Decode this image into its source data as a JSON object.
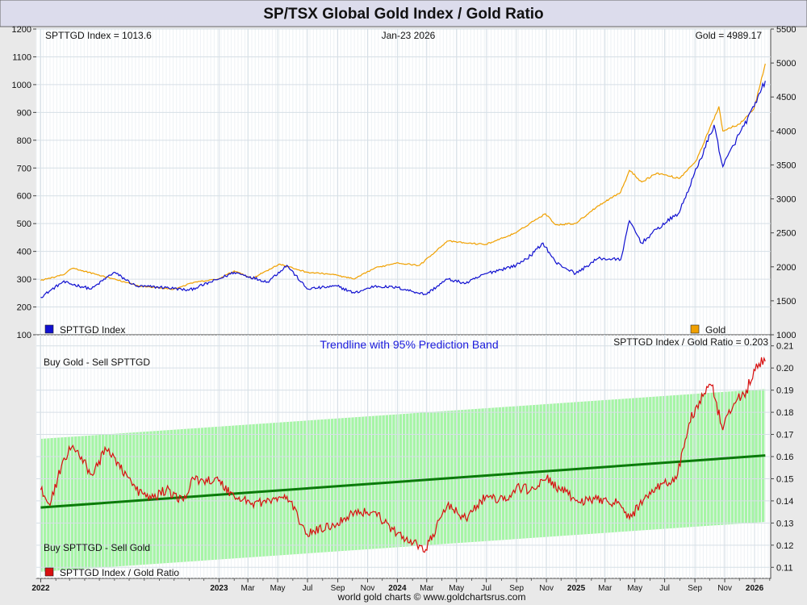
{
  "title": "SP/TSX Global Gold Index / Gold Ratio",
  "footer": "world gold charts © www.goldchartsrus.com",
  "colors": {
    "sptt": "#1010d0",
    "gold": "#f0a000",
    "ratio": "#d81010",
    "trend": "#0a7a0a",
    "band": "#a6f5a6",
    "band_title": "#1a1adc"
  },
  "top_panel": {
    "label_left": "SPTTGD Index = 1013.6",
    "label_center": "Jan-23  2026",
    "label_right": "Gold = 4989.17",
    "legend_left": "SPTTGD Index",
    "legend_right": "Gold"
  },
  "bottom_panel": {
    "band_title": "Trendline with 95% Prediction Band",
    "label_right": "SPTTGD Index / Gold Ratio = 0.203",
    "buy_gold": "Buy Gold - Sell SPTTGD",
    "buy_sptt": "Buy SPTTGD - Sell Gold",
    "legend": "SPTTGD Index / Gold Ratio"
  },
  "chart_data": [
    {
      "type": "line",
      "series": [
        {
          "name": "SPTTGD Index",
          "x": [
            "2022-01-01",
            "2022-02-15",
            "2022-04-15",
            "2022-05-31",
            "2022-07-15",
            "2022-09-15",
            "2022-10-31",
            "2022-12-31",
            "2023-02-01",
            "2023-04-10",
            "2023-05-20",
            "2023-06-30",
            "2023-08-31",
            "2023-10-05",
            "2023-11-15",
            "2023-12-31",
            "2024-02-28",
            "2024-04-12",
            "2024-05-20",
            "2024-06-30",
            "2024-08-31",
            "2024-09-30",
            "2024-10-25",
            "2024-11-20",
            "2024-12-31",
            "2025-02-15",
            "2025-04-02",
            "2025-04-20",
            "2025-05-15",
            "2025-06-15",
            "2025-07-31",
            "2025-09-05",
            "2025-10-10",
            "2025-10-28",
            "2025-11-30",
            "2025-12-31",
            "2026-01-23"
          ],
          "y": [
            235,
            290,
            265,
            325,
            275,
            270,
            260,
            300,
            325,
            290,
            350,
            265,
            275,
            250,
            275,
            270,
            245,
            300,
            285,
            320,
            350,
            385,
            430,
            360,
            320,
            375,
            370,
            510,
            430,
            480,
            540,
            700,
            855,
            705,
            820,
            920,
            1013.6
          ]
        },
        {
          "name": "Gold",
          "x": [
            "2022-01-01",
            "2022-02-15",
            "2022-03-08",
            "2022-05-15",
            "2022-07-20",
            "2022-09-30",
            "2022-11-10",
            "2022-12-31",
            "2023-02-01",
            "2023-03-10",
            "2023-05-04",
            "2023-06-30",
            "2023-08-20",
            "2023-10-05",
            "2023-11-15",
            "2023-12-31",
            "2024-02-15",
            "2024-04-12",
            "2024-05-20",
            "2024-06-30",
            "2024-08-31",
            "2024-09-30",
            "2024-10-30",
            "2024-11-20",
            "2024-12-31",
            "2025-02-15",
            "2025-04-02",
            "2025-04-20",
            "2025-05-15",
            "2025-06-15",
            "2025-07-31",
            "2025-09-05",
            "2025-10-20",
            "2025-10-28",
            "2025-11-30",
            "2025-12-31",
            "2026-01-23"
          ],
          "y": [
            1800,
            1880,
            1980,
            1850,
            1720,
            1670,
            1770,
            1820,
            1940,
            1830,
            2040,
            1920,
            1890,
            1820,
            1980,
            2060,
            2020,
            2380,
            2350,
            2330,
            2500,
            2650,
            2780,
            2620,
            2640,
            2900,
            3100,
            3420,
            3250,
            3380,
            3300,
            3580,
            4360,
            4000,
            4100,
            4330,
            4989.17
          ]
        }
      ],
      "ylim_left": [
        100,
        1200
      ],
      "yticks_left": [
        100,
        200,
        300,
        400,
        500,
        600,
        700,
        800,
        900,
        1000,
        1100,
        1200
      ],
      "ylim_right": [
        1000,
        5500
      ],
      "yticks_right": [
        1000,
        1500,
        2000,
        2500,
        3000,
        3500,
        4000,
        4500,
        5000,
        5500
      ],
      "grid": true
    },
    {
      "type": "line",
      "series": [
        {
          "name": "SPTTGD Index / Gold Ratio",
          "x": [
            "2022-01-01",
            "2022-01-20",
            "2022-02-15",
            "2022-03-08",
            "2022-04-15",
            "2022-05-15",
            "2022-05-31",
            "2022-07-15",
            "2022-08-15",
            "2022-09-15",
            "2022-10-20",
            "2022-11-10",
            "2022-12-31",
            "2023-02-01",
            "2023-03-10",
            "2023-04-15",
            "2023-05-20",
            "2023-06-30",
            "2023-08-31",
            "2023-10-05",
            "2023-11-15",
            "2023-12-31",
            "2024-02-15",
            "2024-02-28",
            "2024-04-12",
            "2024-05-20",
            "2024-06-30",
            "2024-08-10",
            "2024-08-31",
            "2024-09-30",
            "2024-11-01",
            "2024-12-31",
            "2025-01-31",
            "2025-02-28",
            "2025-04-02",
            "2025-04-20",
            "2025-05-31",
            "2025-06-30",
            "2025-07-25",
            "2025-08-20",
            "2025-09-10",
            "2025-10-05",
            "2025-10-28",
            "2025-11-20",
            "2025-12-15",
            "2026-01-10",
            "2026-01-23"
          ],
          "y": [
            0.145,
            0.138,
            0.158,
            0.165,
            0.152,
            0.163,
            0.16,
            0.145,
            0.141,
            0.145,
            0.14,
            0.15,
            0.149,
            0.142,
            0.139,
            0.14,
            0.142,
            0.125,
            0.13,
            0.135,
            0.135,
            0.125,
            0.12,
            0.118,
            0.138,
            0.132,
            0.142,
            0.14,
            0.146,
            0.145,
            0.15,
            0.14,
            0.14,
            0.141,
            0.138,
            0.132,
            0.144,
            0.148,
            0.15,
            0.175,
            0.185,
            0.192,
            0.172,
            0.184,
            0.19,
            0.202,
            0.203
          ]
        },
        {
          "name": "Trendline",
          "x": [
            "2022-01-01",
            "2026-01-23"
          ],
          "y": [
            0.137,
            0.1605
          ]
        }
      ],
      "band": {
        "x": [
          "2022-01-01",
          "2026-01-23"
        ],
        "upper": [
          0.168,
          0.1905
        ],
        "lower": [
          0.108,
          0.1305
        ]
      },
      "ylim": [
        0.105,
        0.215
      ],
      "yticks": [
        0.11,
        0.12,
        0.13,
        0.14,
        0.15,
        0.16,
        0.17,
        0.18,
        0.19,
        0.2,
        0.21
      ],
      "grid": true
    }
  ],
  "x_axis": {
    "range": [
      "2021-12-23",
      "2026-02-03"
    ],
    "ticks": [
      {
        "label": "2022",
        "date": "2022-01-01",
        "bold": true
      },
      {
        "label": "2023",
        "date": "2023-01-01",
        "bold": true
      },
      {
        "label": "Mar",
        "date": "2023-03-01"
      },
      {
        "label": "May",
        "date": "2023-05-01"
      },
      {
        "label": "Jul",
        "date": "2023-07-01"
      },
      {
        "label": "Sep",
        "date": "2023-09-01"
      },
      {
        "label": "Nov",
        "date": "2023-11-01"
      },
      {
        "label": "2024",
        "date": "2024-01-01",
        "bold": true
      },
      {
        "label": "Mar",
        "date": "2024-03-01"
      },
      {
        "label": "May",
        "date": "2024-05-01"
      },
      {
        "label": "Jul",
        "date": "2024-07-01"
      },
      {
        "label": "Sep",
        "date": "2024-09-01"
      },
      {
        "label": "Nov",
        "date": "2024-11-01"
      },
      {
        "label": "2025",
        "date": "2025-01-01",
        "bold": true
      },
      {
        "label": "Mar",
        "date": "2025-03-01"
      },
      {
        "label": "May",
        "date": "2025-05-01"
      },
      {
        "label": "Jul",
        "date": "2025-07-01"
      },
      {
        "label": "Sep",
        "date": "2025-09-01"
      },
      {
        "label": "Nov",
        "date": "2025-11-01"
      },
      {
        "label": "2026",
        "date": "2026-01-01",
        "bold": true
      }
    ]
  }
}
